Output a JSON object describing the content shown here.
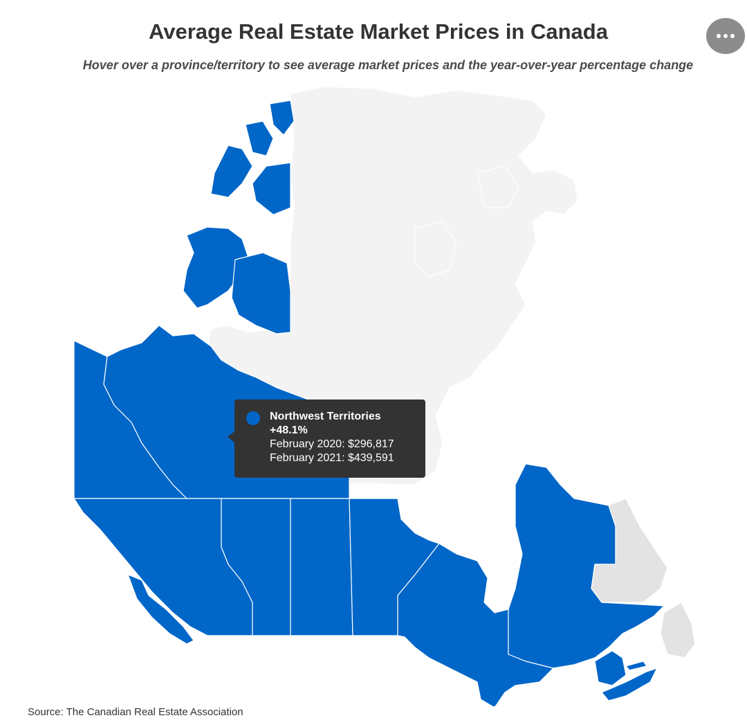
{
  "header": {
    "title": "Average Real Estate Market Prices in Canada",
    "subtitle": "Hover over a province/territory to see average market prices and the year-over-year percentage change"
  },
  "menu": {
    "icon": "more-horizontal-icon"
  },
  "map": {
    "colors": {
      "has_data": "#0066c8",
      "no_data": "#f3f3f3",
      "no_data_highlight": "#e3e3e3",
      "border": "#ffffff"
    },
    "regions": [
      {
        "name": "Northwest Territories",
        "has_data": true
      },
      {
        "name": "Yukon",
        "has_data": true
      },
      {
        "name": "British Columbia",
        "has_data": true
      },
      {
        "name": "Alberta",
        "has_data": true
      },
      {
        "name": "Saskatchewan",
        "has_data": true
      },
      {
        "name": "Manitoba",
        "has_data": true
      },
      {
        "name": "Ontario",
        "has_data": true
      },
      {
        "name": "Quebec",
        "has_data": true
      },
      {
        "name": "New Brunswick",
        "has_data": true
      },
      {
        "name": "Nova Scotia",
        "has_data": true
      },
      {
        "name": "Prince Edward Island",
        "has_data": true
      },
      {
        "name": "Nunavut",
        "has_data": false
      },
      {
        "name": "Newfoundland and Labrador",
        "has_data": false
      }
    ]
  },
  "tooltip": {
    "region": "Northwest Territories",
    "change": "+48.1%",
    "line_2020": "February 2020: $296,817",
    "line_2021": "February 2021: $439,591",
    "swatch_color": "#0066c8"
  },
  "footer": {
    "source": "Source: The Canadian Real Estate Association"
  }
}
